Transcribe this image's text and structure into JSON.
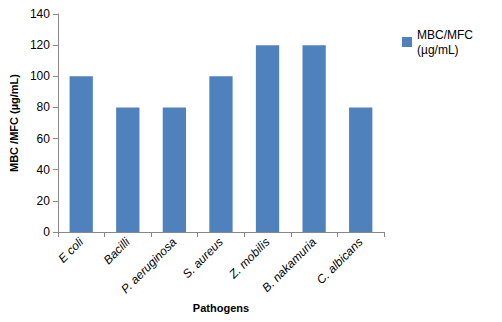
{
  "chart_data": {
    "type": "bar",
    "x_label": "Pathogens",
    "y_label": "MBC /MFC (µg/mL)",
    "categories": [
      "E coli",
      "Bacilli",
      "P. aeruginosa",
      "S. aureus",
      "Z. mobilis",
      "B. nakamuria",
      "C. albicans"
    ],
    "series": [
      {
        "name": "MBC/MFC (µg/mL)",
        "color": "#4f81bd",
        "values": [
          100,
          80,
          80,
          100,
          120,
          120,
          80
        ]
      }
    ],
    "ylim": [
      0,
      140
    ],
    "yticks": [
      0,
      20,
      40,
      60,
      80,
      100,
      120,
      140
    ],
    "grid": false,
    "legend": "right"
  }
}
